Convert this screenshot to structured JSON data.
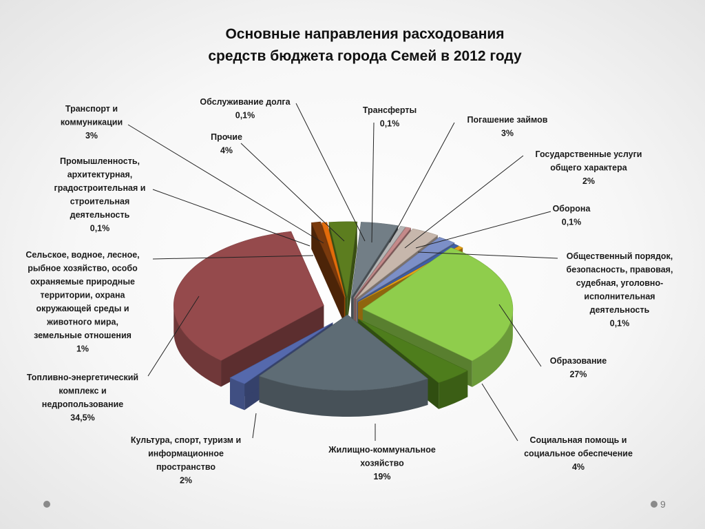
{
  "slide": {
    "page_number": "9"
  },
  "chart_data": {
    "type": "pie",
    "title": [
      "Основные направления расходования",
      "средств бюджета города Семей в 2012 году"
    ],
    "slices": [
      {
        "label": [
          "Образование"
        ],
        "value_label": "27%",
        "value": 27,
        "color": "#8fcd4c"
      },
      {
        "label": [
          "Социальная помощь и",
          "социальное обеспечение"
        ],
        "value_label": "4%",
        "value": 4,
        "color": "#4e7d1c"
      },
      {
        "label": [
          "Жилищно-коммунальное",
          "хозяйство"
        ],
        "value_label": "19%",
        "value": 19,
        "color": "#5e6c75"
      },
      {
        "label": [
          "Культура, спорт, туризм и",
          "информационное",
          "пространство"
        ],
        "value_label": "2%",
        "value": 2,
        "color": "#5569ad"
      },
      {
        "label": [
          "Топливно-энергетический",
          "комплекс и",
          "недропользование"
        ],
        "value_label": "34,5%",
        "value": 34.5,
        "color": "#954a4c"
      },
      {
        "label": [
          "Сельское, водное, лесное,",
          "рыбное хозяйство, особо",
          "охраняемые природные",
          "территории, охрана",
          "окружающей среды и",
          "животного мира,",
          "земельные отношения"
        ],
        "value_label": "1%",
        "value": 1,
        "color": "#7a3a0d"
      },
      {
        "label": [
          "Промышленность,",
          "архитектурная,",
          "градостроительная и",
          "строительная",
          "деятельность"
        ],
        "value_label": "0,1%",
        "value": 0.1,
        "color": "#e36c0a"
      },
      {
        "label": [
          "Транспорт и",
          "коммуникации"
        ],
        "value_label": "3%",
        "value": 3,
        "color": "#5c7d1f"
      },
      {
        "label": [
          "Прочие"
        ],
        "value_label": "4%",
        "value": 4,
        "color": "#727e86"
      },
      {
        "label": [
          "Обслуживание долга"
        ],
        "value_label": "0,1%",
        "value": 0.1,
        "color": "#b6b6b6"
      },
      {
        "label": [
          "Трансферты"
        ],
        "value_label": "0,1%",
        "value": 0.1,
        "color": "#c48a8a"
      },
      {
        "label": [
          "Погашение займов"
        ],
        "value_label": "3%",
        "value": 3,
        "color": "#c7b7ac"
      },
      {
        "label": [
          "Государственные услуги",
          "общего характера"
        ],
        "value_label": "2%",
        "value": 2,
        "color": "#7c8fc7"
      },
      {
        "label": [
          "Оборона"
        ],
        "value_label": "0,1%",
        "value": 0.1,
        "color": "#3f5fa8"
      },
      {
        "label": [
          "Общественный порядок,",
          "безопасность, правовая,",
          "судебная, уголовно-",
          "исполнительная",
          "деятельность"
        ],
        "value_label": "0,1%",
        "value": 0.1,
        "color": "#e6a317"
      }
    ]
  }
}
